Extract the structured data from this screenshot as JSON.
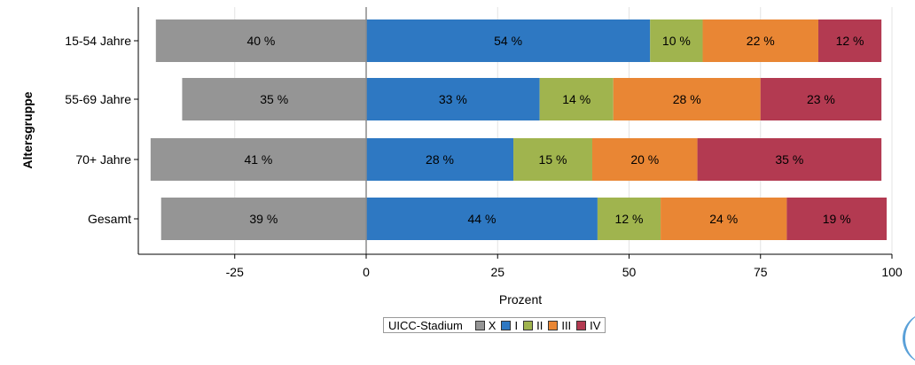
{
  "chart_data": {
    "type": "bar",
    "orientation": "horizontal",
    "stacked": true,
    "categories": [
      "15-54 Jahre",
      "55-69 Jahre",
      "70+ Jahre",
      "Gesamt"
    ],
    "series": [
      {
        "name": "X",
        "color": "#959595",
        "values": [
          -40,
          -35,
          -41,
          -39
        ],
        "labels": [
          "40 %",
          "35 %",
          "41 %",
          "39 %"
        ]
      },
      {
        "name": "I",
        "color": "#2e78c2",
        "values": [
          54,
          33,
          28,
          44
        ],
        "labels": [
          "54 %",
          "33 %",
          "28 %",
          "44 %"
        ]
      },
      {
        "name": "II",
        "color": "#a0b44e",
        "values": [
          10,
          14,
          15,
          12
        ],
        "labels": [
          "10 %",
          "14 %",
          "15 %",
          "12 %"
        ]
      },
      {
        "name": "III",
        "color": "#e98634",
        "values": [
          22,
          28,
          20,
          24
        ],
        "labels": [
          "22 %",
          "28 %",
          "20 %",
          "24 %"
        ]
      },
      {
        "name": "IV",
        "color": "#b33a51",
        "values": [
          12,
          23,
          35,
          19
        ],
        "labels": [
          "12 %",
          "23 %",
          "35 %",
          "19 %"
        ]
      }
    ],
    "xlabel": "Prozent",
    "ylabel": "Altersgruppe",
    "xlim": [
      -42,
      100
    ],
    "xticks": [
      -25,
      0,
      25,
      50,
      75,
      100
    ],
    "xtick_labels": [
      "-25",
      "0",
      "25",
      "50",
      "75",
      "100"
    ],
    "grid": true,
    "legend": {
      "title": "UICC-Stadium",
      "position": "bottom",
      "entries": [
        "X",
        "I",
        "II",
        "III",
        "IV"
      ]
    }
  }
}
